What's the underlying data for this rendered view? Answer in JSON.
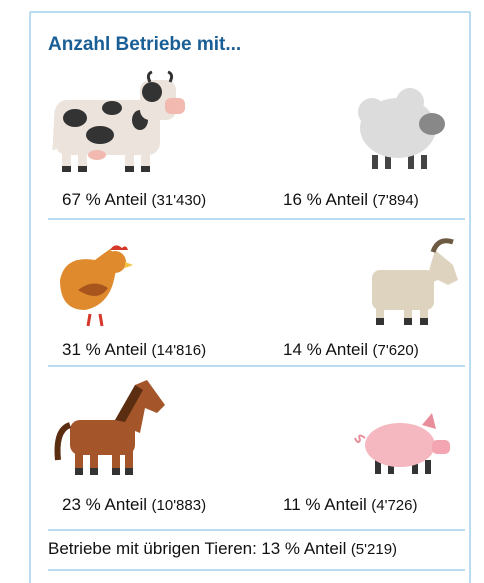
{
  "title": "Anzahl Betriebe mit...",
  "items": [
    {
      "share": "67 % Anteil",
      "count": "(31'430)"
    },
    {
      "share": "16 % Anteil",
      "count": "(7'894)"
    },
    {
      "share": "31 % Anteil",
      "count": "(14'816)"
    },
    {
      "share": "14 % Anteil",
      "count": "(7'620)"
    },
    {
      "share": "23 % Anteil",
      "count": "(10'883)"
    },
    {
      "share": "11 % Anteil",
      "count": "(4'726)"
    }
  ],
  "footer": {
    "label": "Betriebe mit übrigen Tieren:",
    "share": "13 % Anteil",
    "count": "(5'219)"
  }
}
